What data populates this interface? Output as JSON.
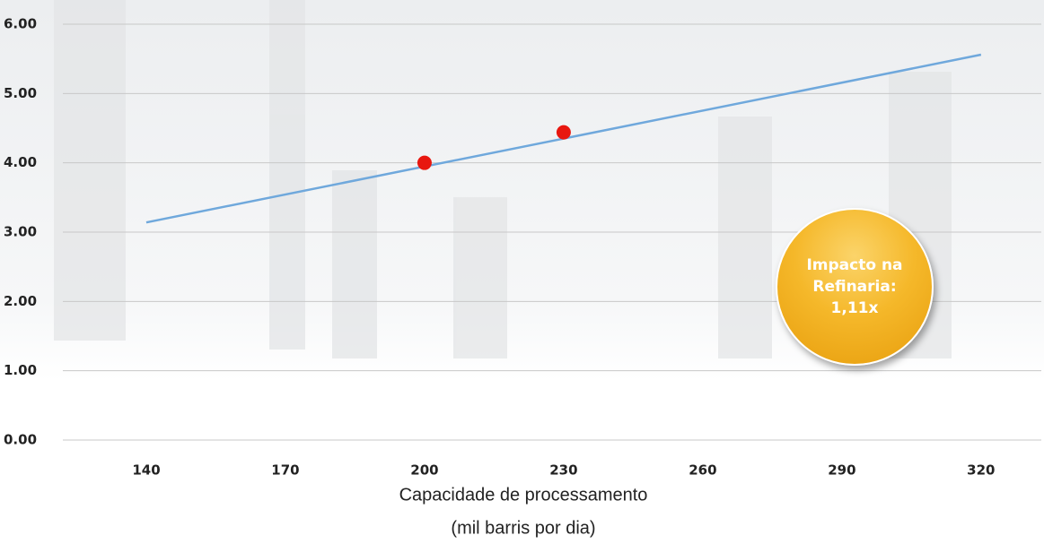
{
  "chart_data": {
    "type": "line",
    "xlabel": [
      "Capacidade de processamento",
      "(mil barris por dia)"
    ],
    "xlim": [
      122,
      333
    ],
    "xticks": [
      140,
      170,
      200,
      230,
      260,
      290,
      320
    ],
    "ylim": [
      0,
      6
    ],
    "yticks": [
      {
        "value": 0,
        "label": "0.00"
      },
      {
        "value": 1,
        "label": "1.00"
      },
      {
        "value": 2,
        "label": "2.00"
      },
      {
        "value": 3,
        "label": "3.00"
      },
      {
        "value": 4,
        "label": "4.00"
      },
      {
        "value": 5,
        "label": "5.00"
      },
      {
        "value": 6,
        "label": "6.00"
      }
    ],
    "grid": true,
    "series": [
      {
        "type": "line",
        "color": "#6fa8dc",
        "x": [
          140,
          320
        ],
        "values": [
          3.14,
          5.56
        ]
      },
      {
        "type": "scatter",
        "color": "#e8170f",
        "x": [
          200,
          230
        ],
        "values": [
          4.0,
          4.44
        ]
      }
    ],
    "annotation": "Impacto na Refinaria: 1,11x"
  }
}
